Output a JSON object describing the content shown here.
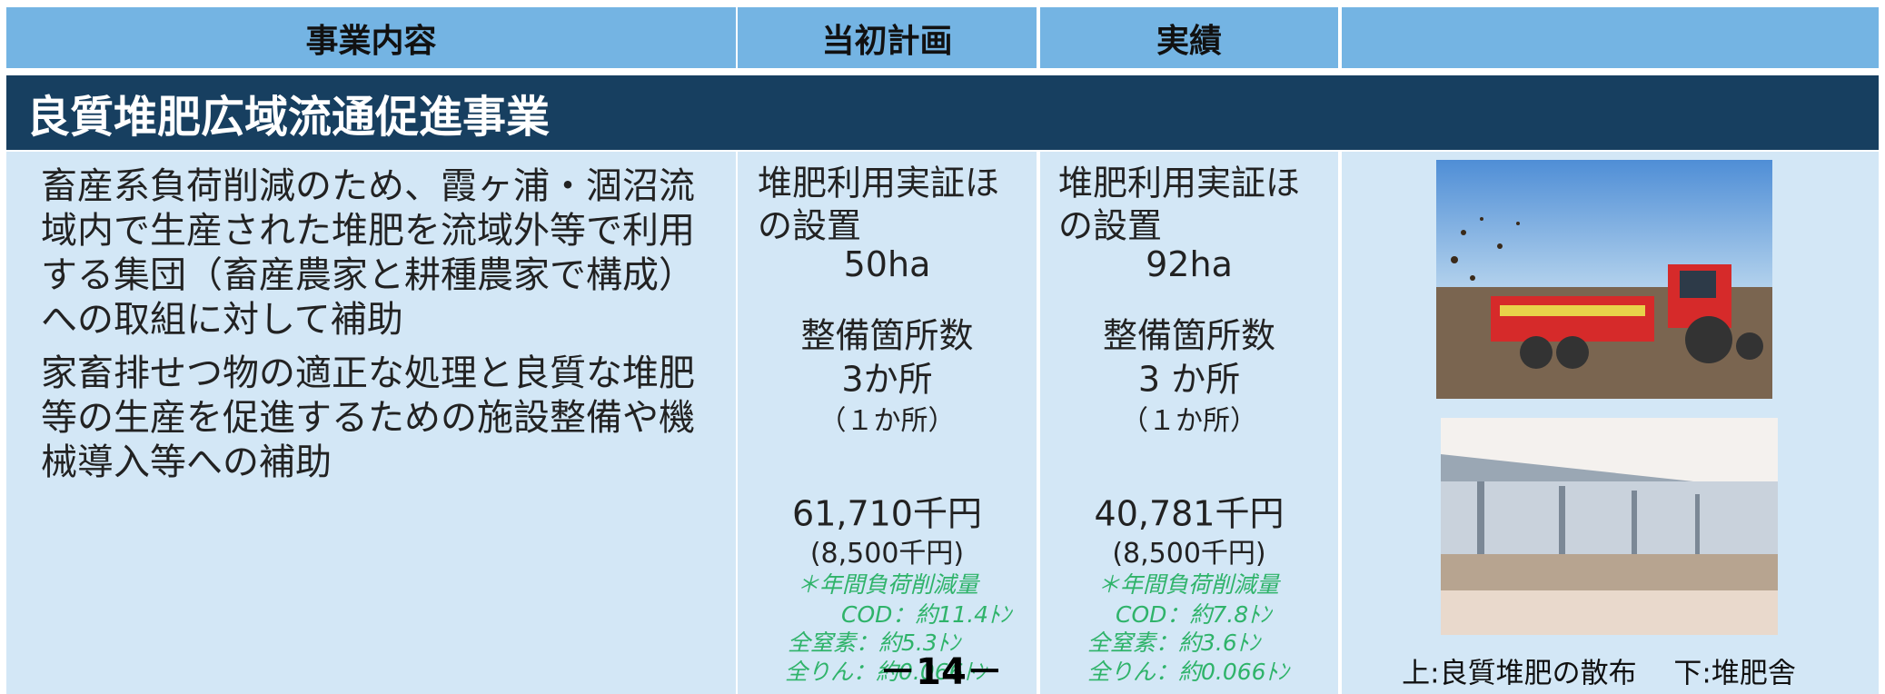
{
  "header": {
    "columns": [
      "事業内容",
      "当初計画",
      "実績"
    ]
  },
  "section_title": "良質堆肥広域流通促進事業",
  "description": [
    "畜産系負荷削減のため、霞ヶ浦・涸沼流域内で生産された堆肥を流域外等で利用する集団（畜産農家と耕種農家で構成）への取組に対して補助",
    "家畜排せつ物の適正な処理と良質な堆肥等の生産を促進するための施設整備や機械導入等への補助"
  ],
  "plan": {
    "item1_line1": "堆肥利用実証ほ",
    "item1_line2": "の設置",
    "area": "50ha",
    "item2": "整備箇所数",
    "count": "3か所",
    "count_note": "（１か所）",
    "budget": "61,710千円",
    "budget_note": "(8,500千円)",
    "reduction_title": "＊年間負荷削減量",
    "reduction": [
      "COD：約11.4ﾄﾝ",
      "全窒素：約5.3ﾄﾝ",
      "全りん：約0.066ﾄﾝ"
    ]
  },
  "actual": {
    "item1_line1": "堆肥利用実証ほ",
    "item1_line2": "の設置",
    "area": "92ha",
    "item2": "整備箇所数",
    "count": "3 か所",
    "count_note": "（１か所）",
    "budget": "40,781千円",
    "budget_note": "(8,500千円)",
    "reduction_title": "＊年間負荷削減量",
    "reduction": [
      "COD：約7.8ﾄﾝ",
      "全窒素：約3.6ﾄﾝ",
      "全りん：約0.066ﾄﾝ"
    ]
  },
  "caption": "上:良質堆肥の散布　 下:堆肥舎",
  "page_number": "－14－"
}
